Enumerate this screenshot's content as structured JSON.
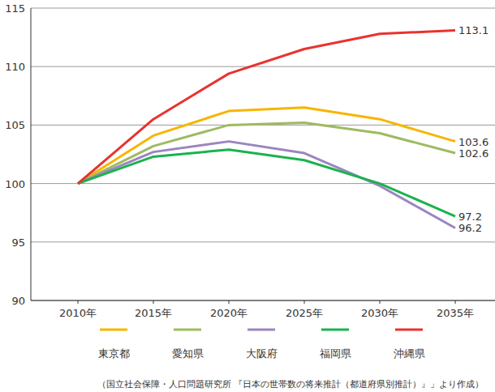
{
  "chart_data": {
    "type": "line",
    "categories": [
      "2010年",
      "2015年",
      "2020年",
      "2025年",
      "2030年",
      "2035年"
    ],
    "series": [
      {
        "name": "東京都",
        "color": "#f7b500",
        "values": [
          100,
          104.1,
          106.2,
          106.5,
          105.5,
          103.6
        ],
        "value_labels": [
          null,
          null,
          null,
          null,
          null,
          "103.6"
        ]
      },
      {
        "name": "愛知県",
        "color": "#9dbb61",
        "values": [
          100,
          103.2,
          105.0,
          105.2,
          104.3,
          102.6
        ],
        "value_labels": [
          null,
          null,
          null,
          null,
          null,
          "102.6"
        ]
      },
      {
        "name": "大阪府",
        "color": "#9b85c0",
        "values": [
          100,
          102.7,
          103.6,
          102.6,
          99.8,
          96.2
        ],
        "value_labels": [
          null,
          null,
          null,
          null,
          null,
          "96.2"
        ]
      },
      {
        "name": "福岡県",
        "color": "#1ab34d",
        "values": [
          100,
          102.3,
          102.9,
          102.0,
          100.0,
          97.2
        ],
        "value_labels": [
          null,
          null,
          null,
          null,
          null,
          "97.2"
        ]
      },
      {
        "name": "沖縄県",
        "color": "#e8332f",
        "values": [
          100,
          105.5,
          109.4,
          111.5,
          112.8,
          113.1
        ],
        "value_labels": [
          null,
          null,
          null,
          null,
          null,
          "113.1"
        ]
      }
    ],
    "ylim": [
      90,
      115
    ],
    "yticks": [
      90,
      95,
      100,
      105,
      110,
      115
    ],
    "grid": true,
    "legend": "bottom",
    "source": "（国立社会保障・人口問題研究所 『日本の世帯数の将来推計（都道府県別推計）』」より作成）"
  }
}
